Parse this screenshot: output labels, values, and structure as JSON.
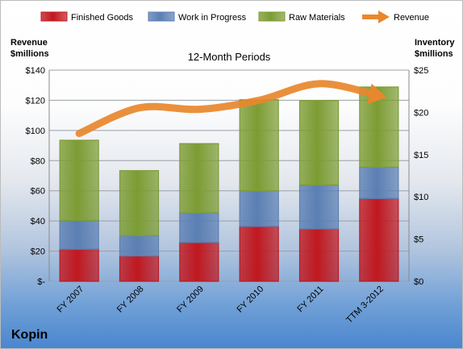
{
  "company": "Kopin",
  "chart_data": {
    "type": "bar",
    "stacked": true,
    "title": "12-Month Periods",
    "categories": [
      "FY 2007",
      "FY 2008",
      "FY 2009",
      "FY 2010",
      "FY 2011",
      "TTM 3-2012"
    ],
    "y_left": {
      "label_lines": [
        "Revenue",
        "$millions"
      ],
      "range": [
        0,
        140
      ],
      "ticks": [
        0,
        20,
        40,
        60,
        80,
        100,
        120,
        140
      ],
      "tick_labels": [
        "$-",
        "$20",
        "$40",
        "$60",
        "$80",
        "$100",
        "$120",
        "$140"
      ]
    },
    "y_right": {
      "label_lines": [
        "Inventory",
        "$millions"
      ],
      "range": [
        0,
        25
      ],
      "ticks": [
        0,
        5,
        10,
        15,
        20,
        25
      ],
      "tick_labels": [
        "$0",
        "$5",
        "$10",
        "$15",
        "$20",
        "$25"
      ]
    },
    "grid": true,
    "legend_position": "top",
    "series": [
      {
        "name": "Finished Goods",
        "kind": "bar",
        "axis": "right",
        "color": "#c0181f",
        "values": [
          3.8,
          3.0,
          4.6,
          6.5,
          6.2,
          9.8
        ]
      },
      {
        "name": "Work in Progress",
        "kind": "bar",
        "axis": "right",
        "color": "#5b7fb3",
        "values": [
          3.4,
          2.4,
          3.5,
          4.2,
          5.2,
          3.7
        ]
      },
      {
        "name": "Raw Materials",
        "kind": "bar",
        "axis": "right",
        "color": "#7c9c33",
        "values": [
          9.5,
          7.7,
          8.2,
          10.8,
          10.0,
          9.5
        ]
      },
      {
        "name": "Revenue",
        "kind": "line",
        "axis": "left",
        "color": "#e8872d",
        "values": [
          98,
          115,
          114,
          120,
          131,
          123
        ]
      }
    ]
  }
}
